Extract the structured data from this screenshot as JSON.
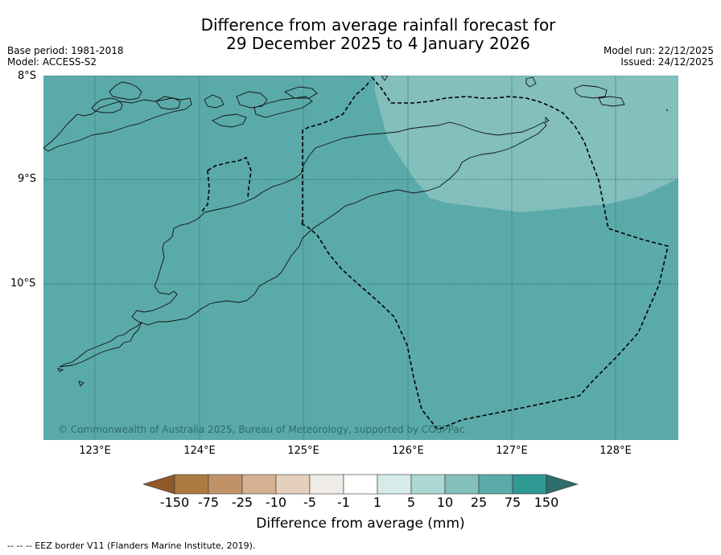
{
  "title_line1": "Difference from average rainfall forecast for",
  "title_line2": "29 December 2025 to 4 January 2026",
  "base_period": "Base period: 1981-2018",
  "model": "Model: ACCESS-S2",
  "model_run": "Model run: 22/12/2025",
  "issued": "Issued: 24/12/2025",
  "lat_labels": [
    "8°S",
    "9°S",
    "10°S"
  ],
  "lon_labels": [
    "123°E",
    "124°E",
    "125°E",
    "126°E",
    "127°E",
    "128°E"
  ],
  "copyright": "© Commonwealth of Australia 2025, Bureau of Meteorology, supported by COSPPac",
  "colorbar": {
    "title": "Difference from average (mm)",
    "tick_labels": [
      "-150",
      "-75",
      "-25",
      "-10",
      "-5",
      "-1",
      "1",
      "5",
      "10",
      "25",
      "75",
      "150"
    ],
    "colors": [
      "#8f5a28",
      "#ad7a44",
      "#c19268",
      "#d3b191",
      "#e4d0bd",
      "#efebe7",
      "#ffffff",
      "#d7ece9",
      "#acd8d4",
      "#82bfbd",
      "#5aaaa9",
      "#2f9994",
      "#2f6e6a"
    ]
  },
  "map": {
    "background_color": "#5aaaa9",
    "light_region_color": "#82bfbd",
    "light_region_category": "10 to 25 mm"
  },
  "footer": "--  --  -- EEZ border V11 (Flanders Marine Institute, 2019)."
}
